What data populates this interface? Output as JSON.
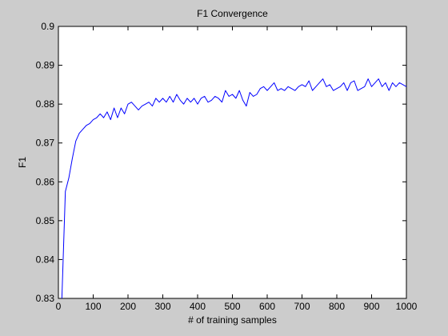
{
  "chart_data": {
    "type": "line",
    "title": "F1 Convergence",
    "xlabel": "# of training samples",
    "ylabel": "F1",
    "xlim": [
      0,
      1000
    ],
    "ylim": [
      0.83,
      0.9
    ],
    "x_ticks": [
      0,
      100,
      200,
      300,
      400,
      500,
      600,
      700,
      800,
      900,
      1000
    ],
    "x_tick_labels": [
      "0",
      "100",
      "200",
      "300",
      "400",
      "500",
      "600",
      "700",
      "800",
      "900",
      "1000"
    ],
    "y_ticks": [
      0.83,
      0.84,
      0.85,
      0.86,
      0.87,
      0.88,
      0.89,
      0.9
    ],
    "y_tick_labels": [
      "0.83",
      "0.84",
      "0.85",
      "0.86",
      "0.87",
      "0.88",
      "0.89",
      "0.9"
    ],
    "grid": false,
    "legend": false,
    "line_color": "#0000ff",
    "series": [
      {
        "x": [
          10,
          20,
          30,
          40,
          50,
          60,
          70,
          80,
          90,
          100,
          110,
          120,
          130,
          140,
          150,
          160,
          170,
          180,
          190,
          200,
          210,
          220,
          230,
          240,
          250,
          260,
          270,
          280,
          290,
          300,
          310,
          320,
          330,
          340,
          350,
          360,
          370,
          380,
          390,
          400,
          410,
          420,
          430,
          440,
          450,
          460,
          470,
          480,
          490,
          500,
          510,
          520,
          530,
          540,
          550,
          560,
          570,
          580,
          590,
          600,
          610,
          620,
          630,
          640,
          650,
          660,
          670,
          680,
          690,
          700,
          710,
          720,
          730,
          740,
          750,
          760,
          770,
          780,
          790,
          800,
          810,
          820,
          830,
          840,
          850,
          860,
          870,
          880,
          890,
          900,
          910,
          920,
          930,
          940,
          950,
          960,
          970,
          980,
          990,
          1000
        ],
        "y": [
          0.83,
          0.8575,
          0.861,
          0.866,
          0.8705,
          0.8725,
          0.8735,
          0.8745,
          0.875,
          0.876,
          0.8765,
          0.8775,
          0.8765,
          0.878,
          0.876,
          0.879,
          0.8765,
          0.879,
          0.8775,
          0.88,
          0.8805,
          0.8795,
          0.8785,
          0.8795,
          0.88,
          0.8805,
          0.8795,
          0.8815,
          0.8805,
          0.8815,
          0.8805,
          0.882,
          0.8805,
          0.8825,
          0.881,
          0.88,
          0.8815,
          0.8805,
          0.8815,
          0.88,
          0.8815,
          0.882,
          0.8805,
          0.881,
          0.882,
          0.8815,
          0.8805,
          0.8835,
          0.882,
          0.8825,
          0.8815,
          0.8835,
          0.881,
          0.8795,
          0.883,
          0.882,
          0.8825,
          0.884,
          0.8845,
          0.8835,
          0.8845,
          0.8855,
          0.8835,
          0.884,
          0.8835,
          0.8845,
          0.884,
          0.8835,
          0.8845,
          0.885,
          0.8845,
          0.886,
          0.8835,
          0.8845,
          0.8855,
          0.8865,
          0.8845,
          0.885,
          0.8835,
          0.884,
          0.8845,
          0.8855,
          0.8835,
          0.8855,
          0.886,
          0.8835,
          0.884,
          0.8845,
          0.8865,
          0.8845,
          0.8855,
          0.8865,
          0.8845,
          0.8855,
          0.8835,
          0.8855,
          0.8845,
          0.8855,
          0.885,
          0.8845
        ]
      }
    ]
  }
}
